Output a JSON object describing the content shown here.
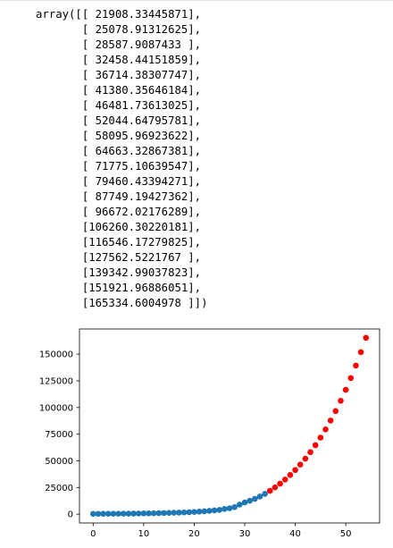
{
  "output": {
    "lines": [
      "array([[ 21908.33445871],",
      "       [ 25078.91312625],",
      "       [ 28587.9087433 ],",
      "       [ 32458.44151859],",
      "       [ 36714.38307747],",
      "       [ 41380.35646184],",
      "       [ 46481.73613025],",
      "       [ 52044.64795781],",
      "       [ 58095.96923622],",
      "       [ 64663.32867381],",
      "       [ 71775.10639547],",
      "       [ 79460.43394271],",
      "       [ 87749.19427362],",
      "       [ 96672.02176289],",
      "       [106260.30220181],",
      "       [116546.17279825],",
      "       [127562.5221767 ],",
      "       [139342.99037823],",
      "       [151921.96886051],",
      "       [165334.6004978 ]])"
    ]
  },
  "chart_data": {
    "type": "scatter",
    "title": "",
    "xlabel": "",
    "ylabel": "",
    "xlim": [
      -2.7,
      56.7
    ],
    "ylim": [
      -8267,
      173602
    ],
    "xticks": [
      0,
      10,
      20,
      30,
      40,
      50
    ],
    "yticks": [
      0,
      25000,
      50000,
      75000,
      100000,
      125000,
      150000
    ],
    "grid": false,
    "series": [
      {
        "color": "#1f77b4",
        "x": [
          0,
          1,
          2,
          3,
          4,
          5,
          6,
          7,
          8,
          9,
          10,
          11,
          12,
          13,
          14,
          15,
          16,
          17,
          18,
          19,
          20,
          21,
          22,
          23,
          24,
          25,
          26,
          27,
          28,
          29,
          30,
          31,
          32,
          33,
          34
        ],
        "y": [
          300,
          320,
          340,
          360,
          390,
          420,
          460,
          500,
          550,
          610,
          680,
          760,
          850,
          950,
          1060,
          1180,
          1320,
          1480,
          1660,
          1870,
          2100,
          2380,
          2700,
          3070,
          3500,
          4000,
          4900,
          5500,
          6600,
          9000,
          11000,
          12500,
          14300,
          16500,
          19000
        ]
      },
      {
        "color": "#ff0000",
        "x": [
          35,
          36,
          37,
          38,
          39,
          40,
          41,
          42,
          43,
          44,
          45,
          46,
          47,
          48,
          49,
          50,
          51,
          52,
          53,
          54
        ],
        "y": [
          21908.33445871,
          25078.91312625,
          28587.9087433,
          32458.44151859,
          36714.38307747,
          41380.35646184,
          46481.73613025,
          52044.64795781,
          58095.96923622,
          64663.32867381,
          71775.10639547,
          79460.43394271,
          87749.19427362,
          96672.02176289,
          106260.30220181,
          116546.17279825,
          127562.5221767,
          139342.99037823,
          151921.96886051,
          165334.6004978
        ]
      }
    ]
  }
}
